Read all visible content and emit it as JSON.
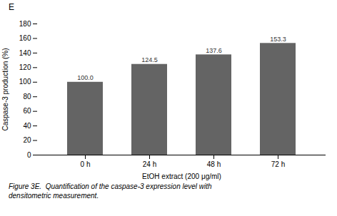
{
  "chart_data": {
    "type": "bar",
    "title": "E",
    "categories": [
      "0 h",
      "24 h",
      "48 h",
      "72 h"
    ],
    "values": [
      100.0,
      124.5,
      137.6,
      153.3
    ],
    "value_labels": [
      "100.0",
      "124.5",
      "137.6",
      "153.3"
    ],
    "data_labels": true,
    "color": "#646464",
    "xlabel": "EtOH extract (200 μg/ml)",
    "ylabel": "Caspase-3 production (%)",
    "ylim": [
      0,
      180
    ],
    "yticks": [
      0,
      20,
      40,
      60,
      80,
      100,
      120,
      140,
      160,
      180
    ],
    "grid": false,
    "annotations": [
      "Figure 3E.  Quantification of the caspase-3 expression level with",
      "densitometric measurement."
    ]
  }
}
